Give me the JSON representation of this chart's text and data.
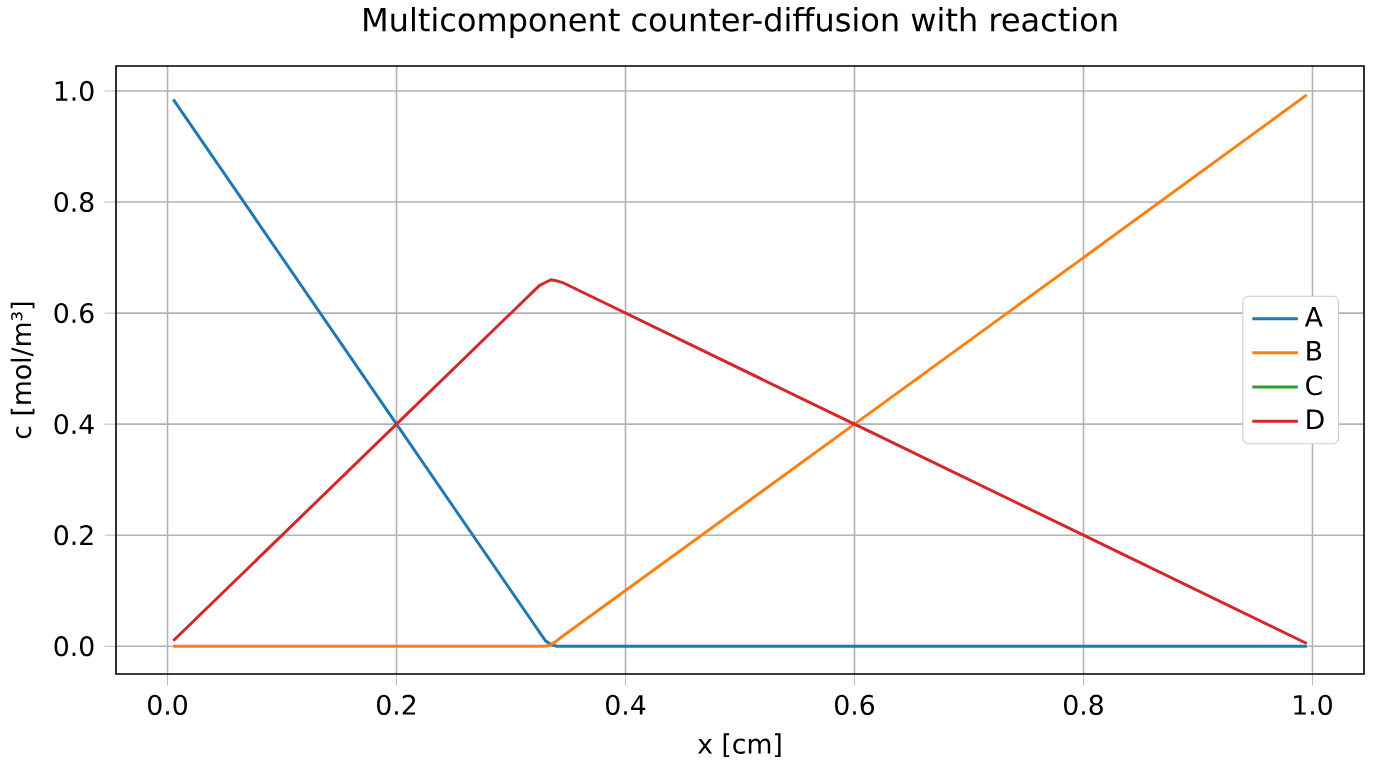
{
  "chart_data": {
    "type": "line",
    "title": "Multicomponent counter-diffusion with reaction",
    "xlabel": "x [cm]",
    "ylabel": "c [mol/m³]",
    "x": [
      0.005,
      0.2,
      0.32,
      0.325,
      0.33,
      0.335,
      0.34,
      0.345,
      0.6,
      0.8,
      0.995
    ],
    "series": [
      {
        "name": "A",
        "color": "#1f77b4",
        "values": [
          0.985,
          0.4,
          0.04,
          0.025,
          0.01,
          0.003,
          0,
          0,
          0,
          0,
          0
        ]
      },
      {
        "name": "B",
        "color": "#ff7f0e",
        "values": [
          0,
          0,
          0,
          0,
          0,
          0.003,
          0.01,
          0.018,
          0.4,
          0.7,
          0.993
        ]
      },
      {
        "name": "C",
        "color": "#2ca02c",
        "values": [
          null,
          null,
          null,
          null,
          null,
          null,
          null,
          null,
          null,
          null,
          null
        ]
      },
      {
        "name": "D",
        "color": "#d62728",
        "values": [
          0.01,
          0.4,
          0.64,
          0.65,
          0.655,
          0.66,
          0.658,
          0.655,
          0.4,
          0.2,
          0.005
        ]
      }
    ],
    "xlim": [
      -0.045,
      1.045
    ],
    "ylim": [
      -0.05,
      1.045
    ],
    "xticks": [
      {
        "value": 0,
        "label": "0.0"
      },
      0.2,
      0.4,
      0.6,
      0.8,
      {
        "value": 1,
        "label": "1.0"
      }
    ],
    "yticks": [
      {
        "value": 0,
        "label": "0.0"
      },
      0.2,
      0.4,
      0.6,
      0.8,
      {
        "value": 1,
        "label": "1.0"
      }
    ],
    "grid": true,
    "legend": "right"
  }
}
